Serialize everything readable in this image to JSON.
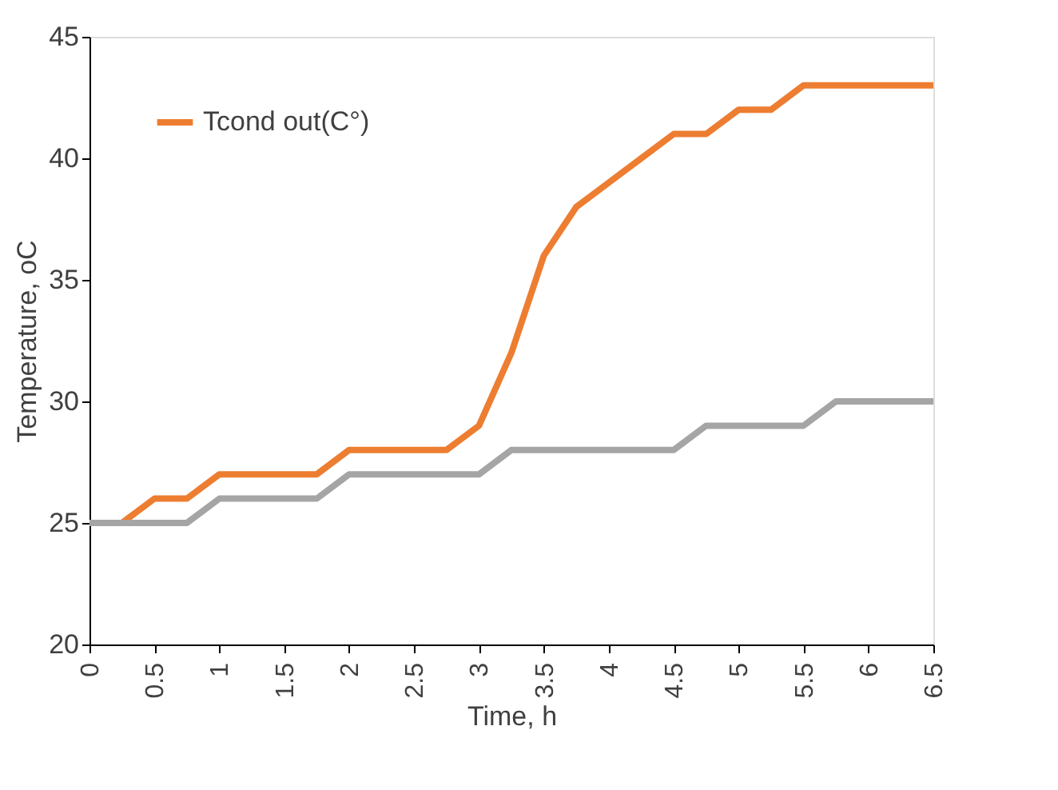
{
  "chart_data": {
    "type": "line",
    "xlabel": "Time, h",
    "ylabel": "Temperature, oC",
    "x": [
      0,
      0.25,
      0.5,
      0.75,
      1,
      1.25,
      1.5,
      1.75,
      2,
      2.25,
      2.5,
      2.75,
      3,
      3.25,
      3.5,
      3.75,
      4,
      4.25,
      4.5,
      4.75,
      5,
      5.25,
      5.5,
      5.75,
      6,
      6.25,
      6.5
    ],
    "series": [
      {
        "name": "Tcond out(C°)",
        "color": "#ed7d31",
        "values": [
          25,
          25,
          26,
          26,
          27,
          27,
          27,
          27,
          28,
          28,
          28,
          28,
          29,
          32,
          36,
          38,
          39,
          40,
          41,
          41,
          42,
          42,
          43,
          43,
          43,
          43,
          43
        ]
      },
      {
        "color": "#a5a5a5",
        "values": [
          25,
          25,
          25,
          25,
          26,
          26,
          26,
          26,
          27,
          27,
          27,
          27,
          27,
          28,
          28,
          28,
          28,
          28,
          28,
          29,
          29,
          29,
          29,
          30,
          30,
          30,
          30
        ]
      }
    ],
    "xlim": [
      0,
      6.5
    ],
    "xticks": [
      0,
      0.5,
      1,
      1.5,
      2,
      2.5,
      3,
      3.5,
      4,
      4.5,
      5,
      5.5,
      6,
      6.5
    ],
    "ylim": [
      20,
      45
    ],
    "yticks": [
      20,
      25,
      30,
      35,
      40,
      45
    ],
    "grid": false,
    "legend": "top left",
    "marker": "none",
    "line_style": "solid"
  }
}
